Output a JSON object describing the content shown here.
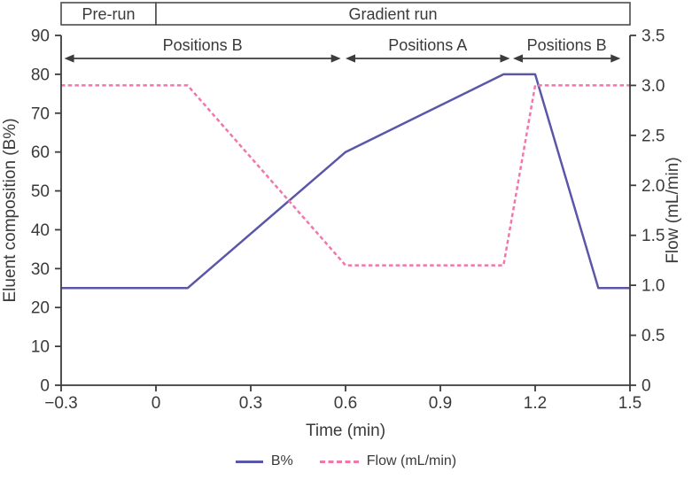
{
  "colors": {
    "series_b_percent": "#5B57A8",
    "series_flow": "#F276AC",
    "axis": "#3C3C3C",
    "text": "#3A3A3A",
    "box_border": "#4C4C4C",
    "background": "#FFFFFF"
  },
  "figure": {
    "header_boxes": [
      {
        "label": "Pre-run",
        "t0": -0.3,
        "t1": 0
      },
      {
        "label": "Gradient run",
        "t0": 0,
        "t1": 1.5
      }
    ],
    "position_spans": [
      {
        "label": "Positions B",
        "t0": -0.29,
        "t1": 0.585
      },
      {
        "label": "Positions A",
        "t0": 0.6,
        "t1": 1.12
      },
      {
        "label": "Positions B",
        "t0": 1.13,
        "t1": 1.47
      }
    ]
  },
  "chart_data": {
    "type": "line",
    "xlabel": "Time (min)",
    "xlim": [
      -0.3,
      1.5
    ],
    "x_ticks": [
      -0.3,
      0,
      0.3,
      0.6,
      0.9,
      1.2,
      1.5
    ],
    "x_tick_labels": [
      "−0.3",
      "0",
      "0.3",
      "0.6",
      "0.9",
      "1.2",
      "1.5"
    ],
    "left_axis": {
      "label": "Eluent composition (B%)",
      "lim": [
        0,
        90
      ],
      "ticks": [
        0,
        10,
        20,
        30,
        40,
        50,
        60,
        70,
        80,
        90
      ],
      "tick_labels": [
        "0",
        "10",
        "20",
        "30",
        "40",
        "50",
        "60",
        "70",
        "80",
        "90"
      ]
    },
    "right_axis": {
      "label": "Flow (mL/min)",
      "lim": [
        0,
        3.5
      ],
      "ticks": [
        0,
        0.5,
        1.0,
        1.5,
        2.0,
        2.5,
        3.0,
        3.5
      ],
      "tick_labels": [
        "0",
        "0.5",
        "1.0",
        "1.5",
        "2.0",
        "2.5",
        "3.0",
        "3.5"
      ]
    },
    "series": [
      {
        "name": "B%",
        "axis": "left",
        "style": "solid",
        "color": "#5B57A8",
        "points": [
          [
            -0.3,
            25
          ],
          [
            0.1,
            25
          ],
          [
            0.6,
            60
          ],
          [
            1.1,
            80
          ],
          [
            1.2,
            80
          ],
          [
            1.4,
            25
          ],
          [
            1.5,
            25
          ]
        ]
      },
      {
        "name": "Flow (mL/min)",
        "axis": "right",
        "style": "dashed",
        "color": "#F276AC",
        "points": [
          [
            -0.3,
            3.0
          ],
          [
            0.1,
            3.0
          ],
          [
            0.6,
            1.2
          ],
          [
            1.1,
            1.2
          ],
          [
            1.2,
            3.0
          ],
          [
            1.5,
            3.0
          ]
        ]
      }
    ],
    "legend": [
      "B%",
      "Flow (mL/min)"
    ],
    "legend_position": "bottom-center",
    "grid": false
  }
}
